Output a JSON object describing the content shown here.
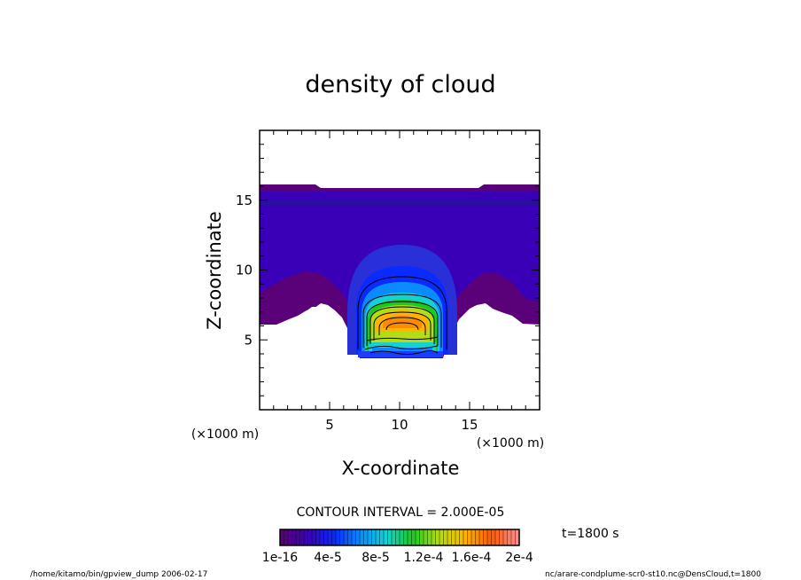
{
  "chart_data": {
    "type": "heatmap",
    "title": "density of cloud",
    "xlabel": "X-coordinate",
    "ylabel": "Z-coordinate",
    "x_unit": "(×1000 m)",
    "y_unit": "(×1000 m)",
    "xlim": [
      0,
      20
    ],
    "ylim": [
      0,
      20
    ],
    "x_ticks": [
      5,
      10,
      15
    ],
    "y_ticks": [
      5,
      10,
      15
    ],
    "contour_interval_text": "CONTOUR INTERVAL = 2.000E-05",
    "time_text": "t=1800 s",
    "colorbar": {
      "min": 1e-16,
      "max": 0.0002,
      "tick_labels": [
        "1e-16",
        "4e-5",
        "8e-5",
        "1.2e-4",
        "1.6e-4",
        "2e-4"
      ],
      "tick_values": [
        0,
        4e-05,
        8e-05,
        0.00012,
        0.00016,
        0.0002
      ]
    },
    "palette": [
      "#5a0078",
      "#3a00b8",
      "#0a2aff",
      "#0a8cff",
      "#14d2d2",
      "#1ec81e",
      "#b4dc14",
      "#ffb400",
      "#ff5a00",
      "#ff8c8c"
    ],
    "footer_left": "/home/kitamo/bin/gpview_dump  2006-02-17",
    "footer_right": "nc/arare-condplume-scr0-st10.nc@DensCloud,t=1800"
  }
}
